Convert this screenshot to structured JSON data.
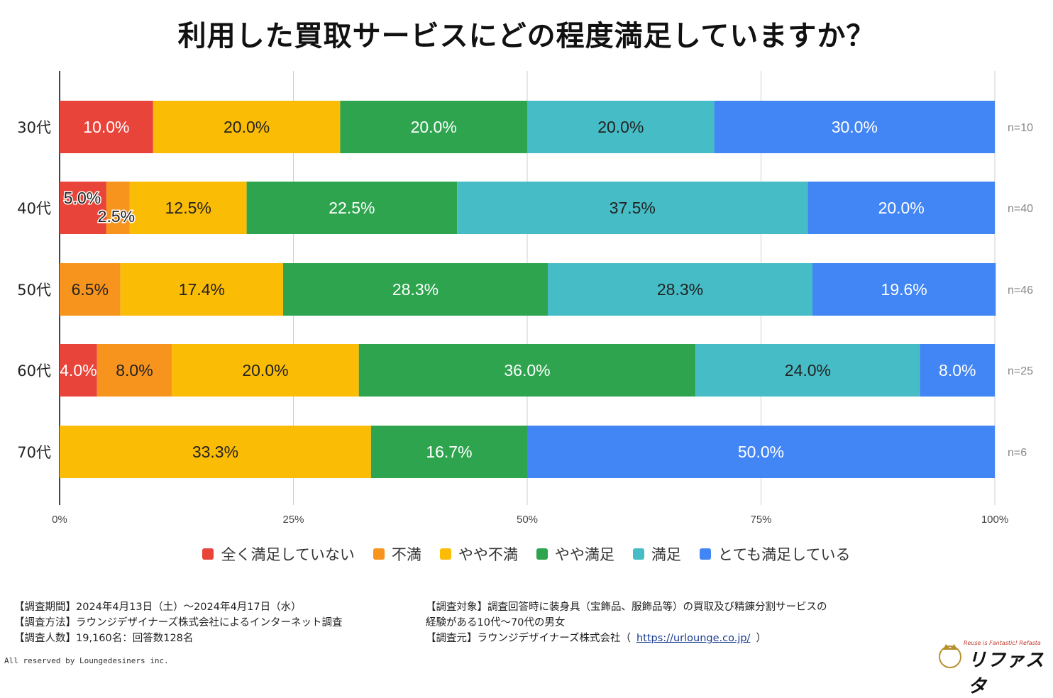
{
  "chart_data": {
    "type": "bar",
    "orientation": "horizontal",
    "stacked": true,
    "title": "利用した買取サービスにどの程度満足していますか？",
    "categories": [
      "30代",
      "40代",
      "50代",
      "60代",
      "70代"
    ],
    "sample_sizes": [
      "n=10",
      "n=40",
      "n=46",
      "n=25",
      "n=6"
    ],
    "xlim": [
      0,
      100
    ],
    "x_ticks": [
      "0%",
      "25%",
      "50%",
      "75%",
      "100%"
    ],
    "x_tick_values": [
      0,
      25,
      50,
      75,
      100
    ],
    "grid": true,
    "legend_position": "bottom",
    "series": [
      {
        "name": "全く満足していない",
        "color": "#e8443a",
        "label_color": "#ffffff",
        "values": [
          10.0,
          5.0,
          0,
          4.0,
          0
        ],
        "labels": [
          "10.0%",
          "5.0%",
          "",
          "4.0%",
          ""
        ]
      },
      {
        "name": "不満",
        "color": "#f7941d",
        "label_color": "#222222",
        "values": [
          0,
          2.5,
          6.5,
          8.0,
          0
        ],
        "labels": [
          "",
          "2.5%",
          "6.5%",
          "8.0%",
          ""
        ]
      },
      {
        "name": "やや不満",
        "color": "#fbbc05",
        "label_color": "#222222",
        "values": [
          20.0,
          12.5,
          17.4,
          20.0,
          33.3
        ],
        "labels": [
          "20.0%",
          "12.5%",
          "17.4%",
          "20.0%",
          "33.3%"
        ]
      },
      {
        "name": "やや満足",
        "color": "#2ea44f",
        "label_color": "#ffffff",
        "values": [
          20.0,
          22.5,
          28.3,
          36.0,
          16.7
        ],
        "labels": [
          "20.0%",
          "22.5%",
          "28.3%",
          "36.0%",
          "16.7%"
        ]
      },
      {
        "name": "満足",
        "color": "#46bdc6",
        "label_color": "#222222",
        "values": [
          20.0,
          37.5,
          28.3,
          24.0,
          0
        ],
        "labels": [
          "20.0%",
          "37.5%",
          "28.3%",
          "24.0%",
          ""
        ]
      },
      {
        "name": "とても満足している",
        "color": "#4285f4",
        "label_color": "#ffffff",
        "values": [
          30.0,
          20.0,
          19.6,
          8.0,
          50.0
        ],
        "labels": [
          "30.0%",
          "20.0%",
          "19.6%",
          "8.0%",
          "50.0%"
        ]
      }
    ]
  },
  "notes_left": [
    "【調査期間】2024年4月13日（土）～2024年4月17日（水）",
    "【調査方法】ラウンジデザイナーズ株式会社によるインターネット調査",
    "【調査人数】19,160名：回答数128名"
  ],
  "notes_right": {
    "target_line1": "【調査対象】調査回答時に装身具（宝飾品、服飾品等）の買取及び精錬分割サービスの",
    "target_line2": "経験がある10代～70代の男女",
    "source_prefix": "【調査元】ラウンジデザイナーズ株式会社（",
    "source_link": "https://urlounge.co.jp/",
    "source_suffix": "）"
  },
  "footer": "All reserved by Loungedesiners inc.",
  "logo": {
    "tagline": "Reuse is Fantastic! Refasta",
    "name": "リファスタ"
  }
}
